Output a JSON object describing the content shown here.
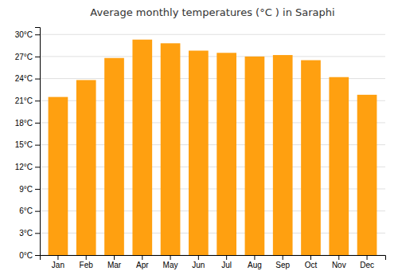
{
  "chart_data": {
    "type": "bar",
    "title": "Average monthly temperatures (°C ) in Saraphi",
    "categories": [
      "Jan",
      "Feb",
      "Mar",
      "Apr",
      "May",
      "Jun",
      "Jul",
      "Aug",
      "Sep",
      "Oct",
      "Nov",
      "Dec"
    ],
    "values": [
      21.5,
      23.8,
      26.8,
      29.3,
      28.8,
      27.8,
      27.5,
      27.0,
      27.2,
      26.5,
      24.2,
      21.8
    ],
    "color": "#FFA010",
    "ylim": [
      0,
      31
    ],
    "yticks": [
      {
        "value": 0,
        "label": "0°C"
      },
      {
        "value": 3,
        "label": "3°C"
      },
      {
        "value": 6,
        "label": "6°C"
      },
      {
        "value": 9,
        "label": "9°C"
      },
      {
        "value": 12,
        "label": "12°C"
      },
      {
        "value": 15,
        "label": "15°C"
      },
      {
        "value": 18,
        "label": "18°C"
      },
      {
        "value": 21,
        "label": "21°C"
      },
      {
        "value": 24,
        "label": "24°C"
      },
      {
        "value": 27,
        "label": "27°C"
      },
      {
        "value": 30,
        "label": "30°C"
      }
    ],
    "grid": true
  }
}
